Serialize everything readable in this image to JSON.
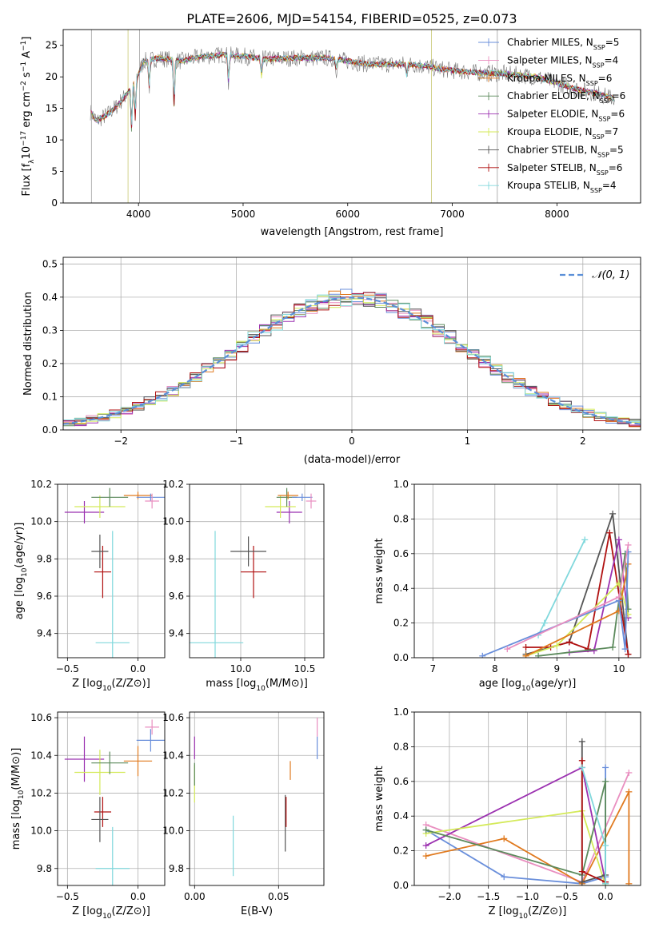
{
  "title": "PLATE=2606, MJD=54154, FIBERID=0525, z=0.073",
  "legend_models": [
    {
      "name": "Chabrier MILES, N",
      "nssp": "=5",
      "color": "#6a8fdb"
    },
    {
      "name": "Salpeter MILES, N",
      "nssp": "=4",
      "color": "#e98fc0"
    },
    {
      "name": "Kroupa MILES, N",
      "nssp": "=6",
      "color": "#e07a1f"
    },
    {
      "name": "Chabrier ELODIE, N",
      "nssp": "=6",
      "color": "#5c8a5c"
    },
    {
      "name": "Salpeter ELODIE, N",
      "nssp": "=6",
      "color": "#9b30b0"
    },
    {
      "name": "Kroupa ELODIE, N",
      "nssp": "=7",
      "color": "#d4ea5a"
    },
    {
      "name": "Chabrier STELIB, N",
      "nssp": "=5",
      "color": "#555555"
    },
    {
      "name": "Salpeter STELIB, N",
      "nssp": "=6",
      "color": "#b01010"
    },
    {
      "name": "Kroupa STELIB, N",
      "nssp": "=4",
      "color": "#80d8dc"
    }
  ],
  "nssp_sub": "SSP",
  "chart_data": [
    {
      "id": "spectrum",
      "type": "line",
      "xlabel": "wavelength [Angstrom, rest frame]",
      "ylabel": "Flux [f",
      "xlim": [
        3280,
        8800
      ],
      "ylim": [
        0,
        27.5
      ],
      "xticks": [
        4000,
        5000,
        6000,
        7000,
        8000
      ],
      "yticks": [
        0,
        5,
        10,
        15,
        20,
        25
      ],
      "grid": false,
      "legend_loc": "upper right",
      "continuum": [
        [
          3540,
          14.5
        ],
        [
          3600,
          13.0
        ],
        [
          3700,
          14.0
        ],
        [
          3800,
          15.5
        ],
        [
          3900,
          17.5
        ],
        [
          3960,
          19.0
        ],
        [
          4050,
          22.5
        ],
        [
          4200,
          23.0
        ],
        [
          4400,
          22.5
        ],
        [
          4600,
          23.2
        ],
        [
          4800,
          23.5
        ],
        [
          5000,
          23.3
        ],
        [
          5200,
          22.8
        ],
        [
          5500,
          23.0
        ],
        [
          5800,
          23.0
        ],
        [
          6000,
          22.5
        ],
        [
          6200,
          22.0
        ],
        [
          6400,
          22.0
        ],
        [
          6600,
          22.0
        ],
        [
          6800,
          21.5
        ],
        [
          7000,
          21.0
        ],
        [
          7200,
          20.7
        ],
        [
          7500,
          20.5
        ],
        [
          7800,
          20.0
        ],
        [
          8000,
          19.0
        ],
        [
          8200,
          18.0
        ],
        [
          8400,
          17.3
        ],
        [
          8550,
          16.5
        ]
      ],
      "dips": [
        [
          3934,
          8
        ],
        [
          3969,
          7
        ],
        [
          4102,
          5
        ],
        [
          4340,
          9
        ],
        [
          4861,
          5
        ],
        [
          5175,
          3
        ],
        [
          5890,
          2
        ],
        [
          6563,
          2
        ]
      ]
    },
    {
      "id": "residuals",
      "type": "step",
      "xlabel": "(data-model)/error",
      "ylabel": "Normed distribution",
      "xlim": [
        -2.5,
        2.5
      ],
      "ylim": [
        0,
        0.52
      ],
      "xticks": [
        -2,
        -1,
        0,
        1,
        2
      ],
      "yticks": [
        0.0,
        0.1,
        0.2,
        0.3,
        0.4,
        0.5
      ],
      "grid": true,
      "legend": "𝒩(0, 1)",
      "legend_loc": "upper right",
      "bin_width": 0.1,
      "bin_start": -2.5
    },
    {
      "id": "z-age",
      "type": "errorbar",
      "xlabel": "Z [log",
      "ylabel": "age  [log",
      "xlim": [
        -0.57,
        0.19
      ],
      "ylim": [
        9.27,
        10.2
      ],
      "xticks": [
        -0.5,
        0.0
      ],
      "yticks": [
        9.4,
        9.6,
        9.8,
        10.0,
        10.2
      ],
      "grid": true,
      "points": [
        {
          "x": -0.18,
          "y": 9.35,
          "dx": 0.12,
          "dy": 0.6,
          "c": "#80d8dc"
        },
        {
          "x": -0.25,
          "y": 9.73,
          "dx": 0.06,
          "dy": 0.14,
          "c": "#b01010"
        },
        {
          "x": -0.27,
          "y": 9.84,
          "dx": 0.06,
          "dy": 0.09,
          "c": "#555555"
        },
        {
          "x": -0.38,
          "y": 10.05,
          "dx": 0.14,
          "dy": 0.06,
          "c": "#9b30b0"
        },
        {
          "x": -0.27,
          "y": 10.08,
          "dx": 0.18,
          "dy": 0.06,
          "c": "#d4ea5a"
        },
        {
          "x": -0.2,
          "y": 10.13,
          "dx": 0.13,
          "dy": 0.05,
          "c": "#5c8a5c"
        },
        {
          "x": 0.0,
          "y": 10.14,
          "dx": 0.1,
          "dy": 0.02,
          "c": "#e07a1f"
        },
        {
          "x": 0.09,
          "y": 10.13,
          "dx": 0.1,
          "dy": 0.02,
          "c": "#6a8fdb"
        },
        {
          "x": 0.1,
          "y": 10.11,
          "dx": 0.05,
          "dy": 0.04,
          "c": "#e98fc0"
        }
      ]
    },
    {
      "id": "mass-age",
      "type": "errorbar",
      "xlabel": "mass [log",
      "ylabel": "",
      "xlim": [
        9.6,
        10.65
      ],
      "ylim": [
        9.27,
        10.2
      ],
      "xticks": [
        10.0,
        10.5
      ],
      "yticks": [
        9.4,
        9.6,
        9.8,
        10.0,
        10.2
      ],
      "grid": true,
      "points": [
        {
          "x": 9.8,
          "y": 9.35,
          "dx": 0.22,
          "dy": 0.6,
          "c": "#80d8dc"
        },
        {
          "x": 10.1,
          "y": 9.73,
          "dx": 0.1,
          "dy": 0.14,
          "c": "#b01010"
        },
        {
          "x": 10.06,
          "y": 9.84,
          "dx": 0.14,
          "dy": 0.08,
          "c": "#555555"
        },
        {
          "x": 10.38,
          "y": 10.05,
          "dx": 0.1,
          "dy": 0.06,
          "c": "#9b30b0"
        },
        {
          "x": 10.31,
          "y": 10.08,
          "dx": 0.12,
          "dy": 0.06,
          "c": "#d4ea5a"
        },
        {
          "x": 10.36,
          "y": 10.13,
          "dx": 0.08,
          "dy": 0.05,
          "c": "#5c8a5c"
        },
        {
          "x": 10.37,
          "y": 10.14,
          "dx": 0.08,
          "dy": 0.02,
          "c": "#e07a1f"
        },
        {
          "x": 10.48,
          "y": 10.13,
          "dx": 0.08,
          "dy": 0.02,
          "c": "#6a8fdb"
        },
        {
          "x": 10.55,
          "y": 10.11,
          "dx": 0.04,
          "dy": 0.04,
          "c": "#e98fc0"
        }
      ]
    },
    {
      "id": "age-weight",
      "type": "line",
      "xlabel": "age  [log",
      "ylabel": "mass weight",
      "xlim": [
        6.7,
        10.35
      ],
      "ylim": [
        0,
        1.0
      ],
      "xticks": [
        7,
        8,
        9,
        10
      ],
      "yticks": [
        0.0,
        0.2,
        0.4,
        0.6,
        0.8,
        1.0
      ],
      "grid": true,
      "series": [
        {
          "c": "#80d8dc",
          "points": [
            [
              8.7,
              0.13
            ],
            [
              8.8,
              0.2
            ],
            [
              9.45,
              0.68
            ]
          ]
        },
        {
          "c": "#555555",
          "points": [
            [
              8.5,
              0.02
            ],
            [
              9.2,
              0.09
            ],
            [
              9.9,
              0.83
            ],
            [
              10.15,
              0.02
            ]
          ]
        },
        {
          "c": "#b01010",
          "points": [
            [
              8.5,
              0.06
            ],
            [
              8.9,
              0.06
            ],
            [
              9.2,
              0.09
            ],
            [
              9.5,
              0.05
            ],
            [
              9.85,
              0.72
            ],
            [
              10.15,
              0.02
            ]
          ]
        },
        {
          "c": "#9b30b0",
          "points": [
            [
              9.2,
              0.03
            ],
            [
              9.6,
              0.04
            ],
            [
              10.0,
              0.68
            ],
            [
              10.15,
              0.23
            ]
          ]
        },
        {
          "c": "#d4ea5a",
          "points": [
            [
              8.5,
              0.01
            ],
            [
              9.0,
              0.07
            ],
            [
              10.0,
              0.43
            ],
            [
              10.15,
              0.25
            ]
          ]
        },
        {
          "c": "#5c8a5c",
          "points": [
            [
              8.7,
              0.01
            ],
            [
              9.9,
              0.06
            ],
            [
              10.1,
              0.6
            ],
            [
              10.15,
              0.28
            ]
          ]
        },
        {
          "c": "#e07a1f",
          "points": [
            [
              8.5,
              0.01
            ],
            [
              10.0,
              0.27
            ],
            [
              10.15,
              0.54
            ]
          ]
        },
        {
          "c": "#6a8fdb",
          "points": [
            [
              7.8,
              0.01
            ],
            [
              10.0,
              0.33
            ],
            [
              10.1,
              0.05
            ],
            [
              10.15,
              0.61
            ]
          ]
        },
        {
          "c": "#e98fc0",
          "points": [
            [
              8.2,
              0.05
            ],
            [
              10.0,
              0.35
            ],
            [
              10.15,
              0.65
            ]
          ]
        }
      ]
    },
    {
      "id": "z-mass",
      "type": "errorbar",
      "xlabel": "Z [log",
      "ylabel": "mass [log",
      "xlim": [
        -0.57,
        0.19
      ],
      "ylim": [
        9.71,
        10.63
      ],
      "xticks": [
        -0.5,
        0.0
      ],
      "yticks": [
        9.8,
        10.0,
        10.2,
        10.4,
        10.6
      ],
      "grid": true,
      "points": [
        {
          "x": -0.18,
          "y": 9.8,
          "dx": 0.12,
          "dy": 0.22,
          "c": "#80d8dc"
        },
        {
          "x": -0.25,
          "y": 10.1,
          "dx": 0.06,
          "dy": 0.08,
          "c": "#b01010"
        },
        {
          "x": -0.27,
          "y": 10.06,
          "dx": 0.06,
          "dy": 0.12,
          "c": "#555555"
        },
        {
          "x": -0.38,
          "y": 10.38,
          "dx": 0.14,
          "dy": 0.12,
          "c": "#9b30b0"
        },
        {
          "x": -0.27,
          "y": 10.31,
          "dx": 0.18,
          "dy": 0.12,
          "c": "#d4ea5a"
        },
        {
          "x": -0.2,
          "y": 10.36,
          "dx": 0.13,
          "dy": 0.06,
          "c": "#5c8a5c"
        },
        {
          "x": 0.0,
          "y": 10.37,
          "dx": 0.1,
          "dy": 0.08,
          "c": "#e07a1f"
        },
        {
          "x": 0.09,
          "y": 10.48,
          "dx": 0.1,
          "dy": 0.06,
          "c": "#6a8fdb"
        },
        {
          "x": 0.1,
          "y": 10.55,
          "dx": 0.05,
          "dy": 0.04,
          "c": "#e98fc0"
        }
      ]
    },
    {
      "id": "ebv-mass",
      "type": "errorbar",
      "xlabel": "E(B-V)",
      "ylabel": "",
      "xlim": [
        -0.003,
        0.077
      ],
      "ylim": [
        9.71,
        10.63
      ],
      "xticks": [
        0.0,
        0.05
      ],
      "yticks": [
        9.8,
        10.0,
        10.2,
        10.4,
        10.6
      ],
      "grid": true,
      "points": [
        {
          "x": 0.023,
          "y": 9.92,
          "dx": 0.0,
          "dy": 0.16,
          "c": "#80d8dc"
        },
        {
          "x": 0.054,
          "y": 10.04,
          "dx": 0.0,
          "dy": 0.15,
          "c": "#555555"
        },
        {
          "x": 0.0545,
          "y": 10.1,
          "dx": 0.0,
          "dy": 0.08,
          "c": "#b01010"
        },
        {
          "x": 0.057,
          "y": 10.32,
          "dx": 0.0,
          "dy": 0.05,
          "c": "#e07a1f"
        },
        {
          "x": 0.0,
          "y": 10.25,
          "dx": 0.0,
          "dy": 0.1,
          "c": "#d4ea5a"
        },
        {
          "x": 0.0,
          "y": 10.44,
          "dx": 0.0,
          "dy": 0.06,
          "c": "#9b30b0"
        },
        {
          "x": 0.0,
          "y": 10.3,
          "dx": 0.0,
          "dy": 0.06,
          "c": "#5c8a5c"
        },
        {
          "x": 0.073,
          "y": 10.44,
          "dx": 0.0,
          "dy": 0.06,
          "c": "#6a8fdb"
        },
        {
          "x": 0.073,
          "y": 10.55,
          "dx": 0.0,
          "dy": 0.05,
          "c": "#e98fc0"
        }
      ]
    },
    {
      "id": "z-weight",
      "type": "line",
      "xlabel": "Z [log",
      "ylabel": "mass weight",
      "xlim": [
        -2.45,
        0.45
      ],
      "ylim": [
        0,
        1.0
      ],
      "xticks": [
        -2.0,
        -1.5,
        -1.0,
        -0.5,
        0.0
      ],
      "yticks": [
        0.0,
        0.2,
        0.4,
        0.6,
        0.8,
        1.0
      ],
      "grid": true,
      "series": [
        {
          "c": "#6a8fdb",
          "points": [
            [
              -2.3,
              0.32
            ],
            [
              -1.3,
              0.05
            ],
            [
              -0.3,
              0.01
            ],
            [
              0.0,
              0.05
            ],
            [
              0.0,
              0.68
            ]
          ]
        },
        {
          "c": "#e98fc0",
          "points": [
            [
              -2.3,
              0.35
            ],
            [
              -0.3,
              0.02
            ],
            [
              0.3,
              0.65
            ]
          ]
        },
        {
          "c": "#e07a1f",
          "points": [
            [
              -2.3,
              0.17
            ],
            [
              -1.3,
              0.27
            ],
            [
              -0.3,
              0.01
            ],
            [
              0.3,
              0.54
            ],
            [
              0.3,
              0.01
            ]
          ]
        },
        {
          "c": "#9b30b0",
          "points": [
            [
              -2.3,
              0.23
            ],
            [
              -0.3,
              0.68
            ],
            [
              0.0,
              0.02
            ]
          ]
        },
        {
          "c": "#d4ea5a",
          "points": [
            [
              -2.3,
              0.3
            ],
            [
              -0.3,
              0.43
            ],
            [
              0.0,
              0.0
            ]
          ]
        },
        {
          "c": "#5c8a5c",
          "points": [
            [
              -2.3,
              0.32
            ],
            [
              -0.3,
              0.06
            ],
            [
              0.0,
              0.6
            ],
            [
              0.0,
              0.01
            ]
          ]
        },
        {
          "c": "#555555",
          "points": [
            [
              -0.3,
              0.83
            ],
            [
              -0.3,
              0.02
            ],
            [
              0.0,
              0.06
            ]
          ]
        },
        {
          "c": "#b01010",
          "points": [
            [
              -0.3,
              0.72
            ],
            [
              -0.3,
              0.08
            ],
            [
              0.0,
              0.02
            ]
          ]
        },
        {
          "c": "#80d8dc",
          "points": [
            [
              -0.3,
              0.68
            ],
            [
              0.0,
              0.23
            ],
            [
              0.0,
              0.01
            ]
          ]
        }
      ]
    }
  ]
}
